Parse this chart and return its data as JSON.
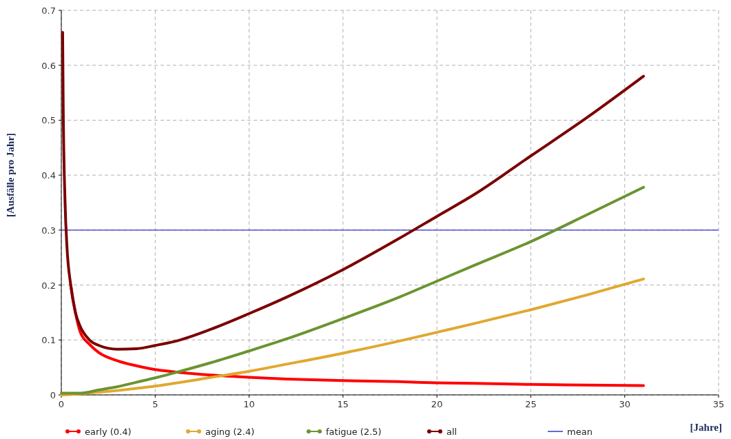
{
  "chart_data": {
    "type": "line",
    "xlabel": "[Jahre]",
    "ylabel": "[Ausfälle pro Jahr]",
    "xlim": [
      0,
      35
    ],
    "ylim": [
      0,
      0.7
    ],
    "xticks": [
      0,
      5,
      10,
      15,
      20,
      25,
      30,
      35
    ],
    "yticks": [
      0,
      0.1,
      0.2,
      0.3,
      0.4,
      0.5,
      0.6,
      0.7
    ],
    "grid": true,
    "legend": "bottom",
    "ref_lines": [
      {
        "axis": "y",
        "value": 0.3,
        "label": "mean",
        "color": "#3333cc"
      }
    ],
    "series": [
      {
        "name": "early (0.4)",
        "color": "#ff0000",
        "x": [
          0.5,
          0.75,
          1,
          1.5,
          2,
          3,
          4,
          5,
          6,
          8,
          10,
          12,
          15,
          18,
          20,
          22,
          25,
          28,
          31
        ],
        "values": [
          0.2,
          0.15,
          0.115,
          0.092,
          0.077,
          0.062,
          0.053,
          0.046,
          0.042,
          0.036,
          0.032,
          0.029,
          0.026,
          0.024,
          0.022,
          0.021,
          0.019,
          0.018,
          0.017
        ]
      },
      {
        "name": "aging (2.4)",
        "color": "#e0a830",
        "x": [
          0,
          1,
          2,
          3,
          4,
          5,
          6,
          8,
          10,
          12,
          15,
          18,
          20,
          22,
          25,
          28,
          31
        ],
        "values": [
          0,
          0.002,
          0.005,
          0.008,
          0.012,
          0.016,
          0.021,
          0.032,
          0.043,
          0.056,
          0.076,
          0.098,
          0.114,
          0.13,
          0.155,
          0.182,
          0.211
        ]
      },
      {
        "name": "fatigue (2.5)",
        "color": "#6b9430",
        "x": [
          0,
          1,
          2,
          3,
          4,
          5,
          6,
          8,
          10,
          12,
          15,
          18,
          20,
          22,
          25,
          28,
          31
        ],
        "values": [
          0.003,
          0.003,
          0.009,
          0.015,
          0.023,
          0.031,
          0.04,
          0.059,
          0.08,
          0.102,
          0.139,
          0.178,
          0.207,
          0.236,
          0.279,
          0.328,
          0.378
        ]
      },
      {
        "name": "all",
        "color": "#7b0000",
        "x": [
          0.07,
          0.1,
          0.2,
          0.3,
          0.5,
          0.75,
          1,
          1.5,
          2,
          3,
          4,
          5,
          6,
          8,
          10,
          12,
          15,
          18,
          20,
          22,
          25,
          28,
          31
        ],
        "values": [
          0.66,
          0.53,
          0.35,
          0.27,
          0.2,
          0.15,
          0.125,
          0.1,
          0.09,
          0.083,
          0.084,
          0.09,
          0.097,
          0.12,
          0.148,
          0.178,
          0.228,
          0.285,
          0.325,
          0.365,
          0.435,
          0.505,
          0.58
        ]
      }
    ]
  }
}
